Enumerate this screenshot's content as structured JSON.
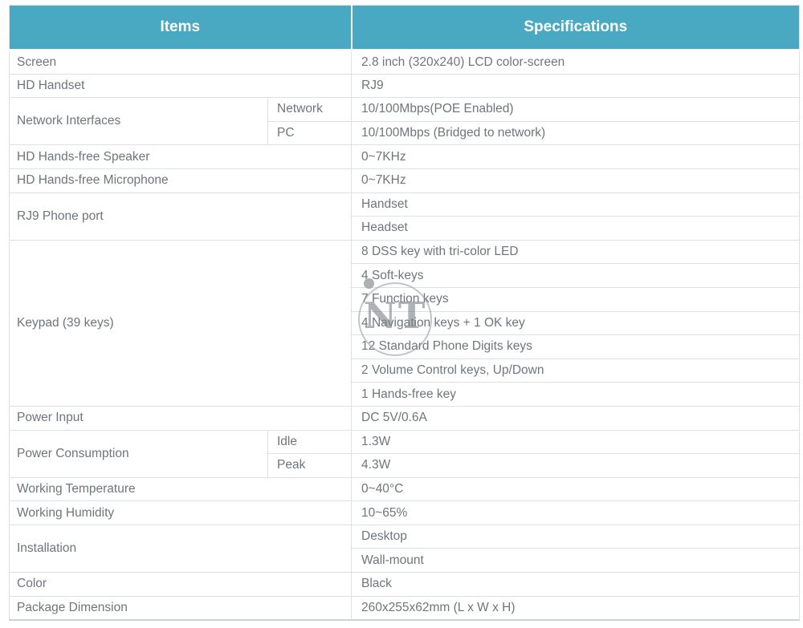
{
  "colors": {
    "header_bg": "#4AA9C2",
    "header_text": "#FFFFFF",
    "body_text": "#6F757B",
    "border": "#DBE0E3"
  },
  "watermark": {
    "text": "NT"
  },
  "table": {
    "header": {
      "items": "Items",
      "specifications": "Specifications"
    },
    "rows": [
      {
        "item": "Screen",
        "spec": "2.8 inch (320x240) LCD color-screen"
      },
      {
        "item": "HD Handset",
        "spec": "RJ9"
      },
      {
        "item": "Network Interfaces",
        "subs": [
          {
            "label": "Network",
            "spec": "10/100Mbps(POE Enabled)"
          },
          {
            "label": "PC",
            "spec": "10/100Mbps (Bridged to network)"
          }
        ]
      },
      {
        "item": "HD Hands-free Speaker",
        "spec": "0~7KHz"
      },
      {
        "item": "HD Hands-free Microphone",
        "spec": "0~7KHz"
      },
      {
        "item": "RJ9 Phone port",
        "specs": [
          "Handset",
          "Headset"
        ]
      },
      {
        "item": "Keypad (39 keys)",
        "specs": [
          "8 DSS key with tri-color LED",
          "4 Soft-keys",
          "7 Function keys",
          "4 Navigation keys + 1 OK key",
          "12 Standard Phone Digits keys",
          "2 Volume Control keys, Up/Down",
          "1 Hands-free key"
        ]
      },
      {
        "item": "Power Input",
        "spec": "DC 5V/0.6A"
      },
      {
        "item": "Power Consumption",
        "subs": [
          {
            "label": "Idle",
            "spec": "1.3W"
          },
          {
            "label": "Peak",
            "spec": "4.3W"
          }
        ]
      },
      {
        "item": "Working Temperature",
        "spec": "0~40°C"
      },
      {
        "item": "Working Humidity",
        "spec": "10~65%"
      },
      {
        "item": "Installation",
        "specs": [
          "Desktop",
          "Wall-mount"
        ]
      },
      {
        "item": "Color",
        "spec": "Black"
      },
      {
        "item": "Package Dimension",
        "spec": "260x255x62mm (L x W x H)"
      }
    ]
  }
}
